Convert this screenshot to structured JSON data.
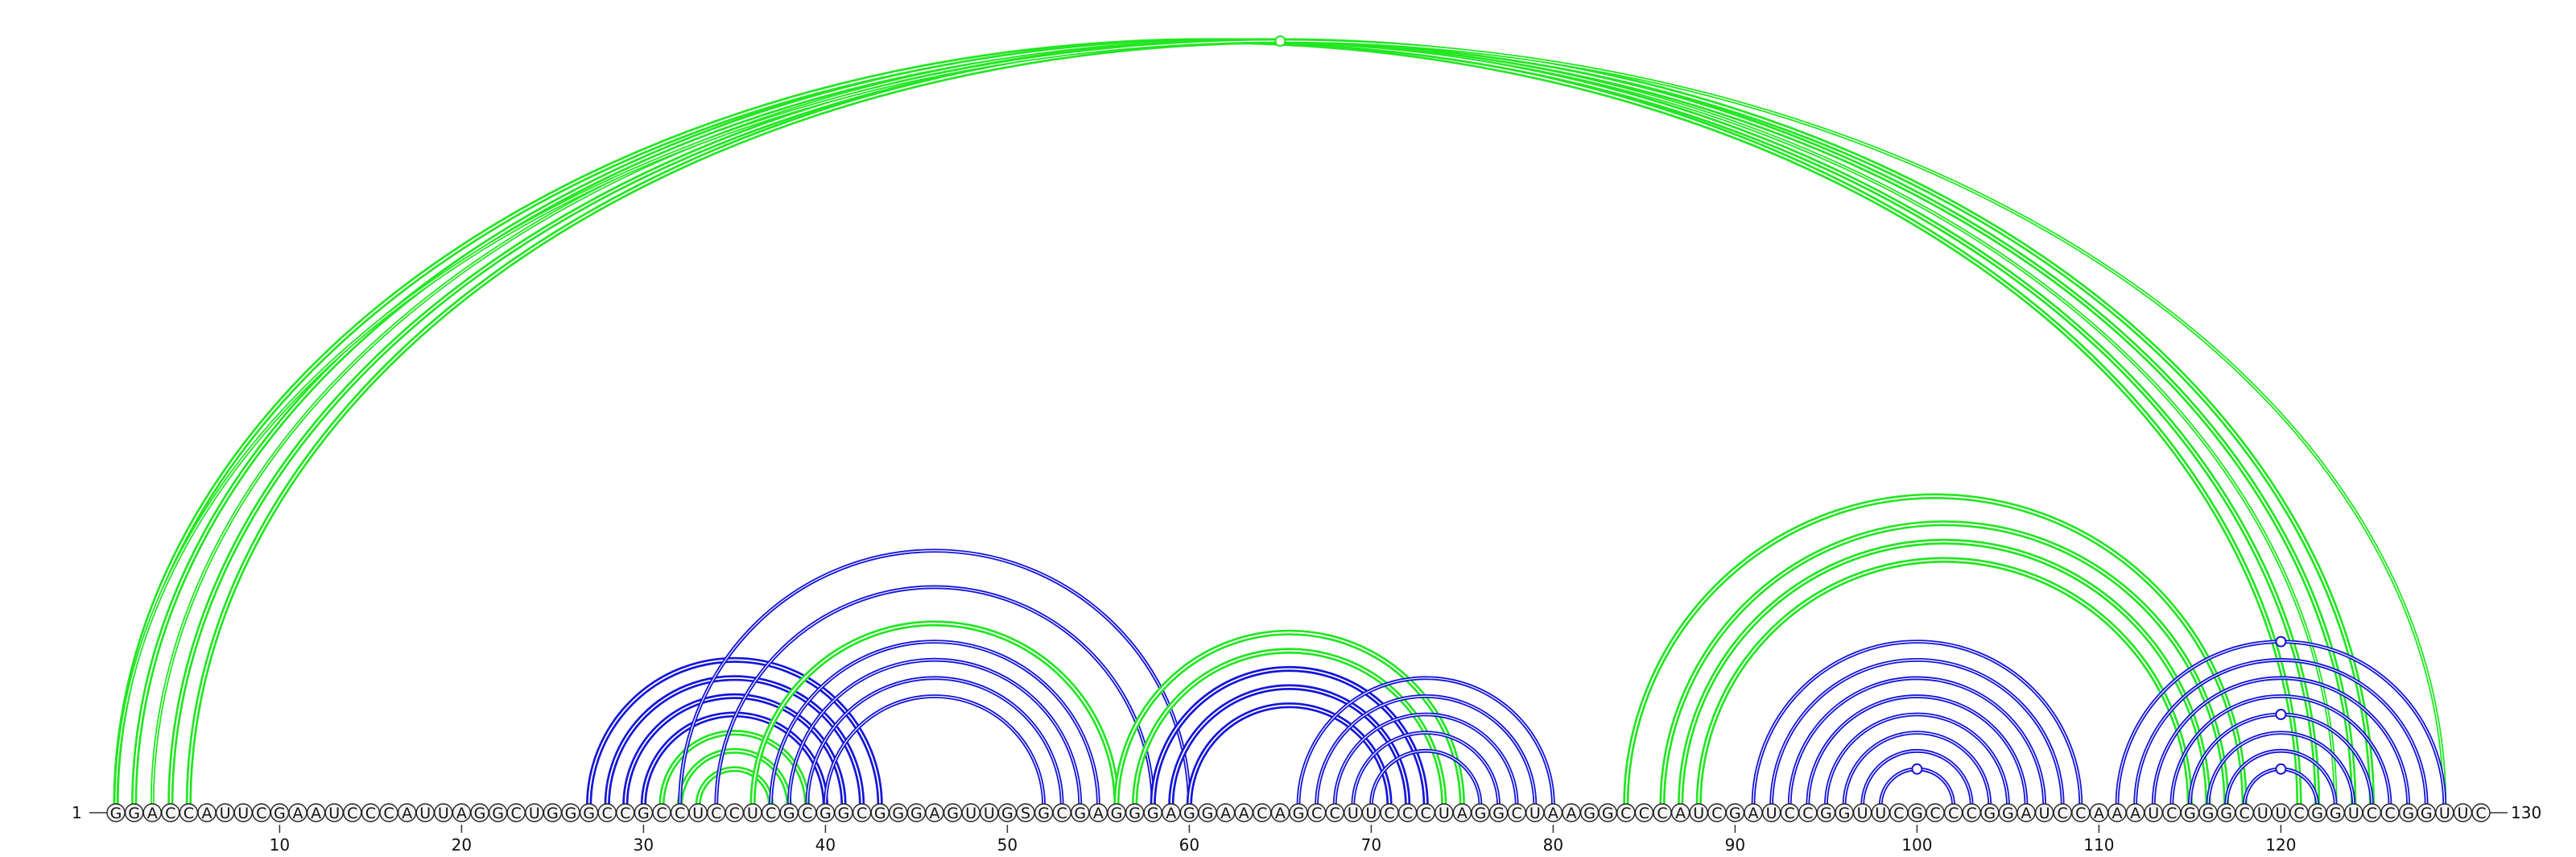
{
  "sequence": "GGACCAUUCGAAUCCCAUUAGGCUGGGCCGCCUCCUCGCGGCGGGAGUUGSGCGAGGGAGGAACAGCCUUCCCUAGGCUAAGGCCCAUCGAUCCGGUUCGCCCGGAUCCAAAUCGGGCUUCGGUCCGGUUC",
  "start_label": "1",
  "end_label": "130",
  "ticks": [
    {
      "pos": 10,
      "label": "10"
    },
    {
      "pos": 20,
      "label": "20"
    },
    {
      "pos": 30,
      "label": "30"
    },
    {
      "pos": 40,
      "label": "40"
    },
    {
      "pos": 50,
      "label": "50"
    },
    {
      "pos": 60,
      "label": "60"
    },
    {
      "pos": 70,
      "label": "70"
    },
    {
      "pos": 80,
      "label": "80"
    },
    {
      "pos": 90,
      "label": "90"
    },
    {
      "pos": 100,
      "label": "100"
    },
    {
      "pos": 110,
      "label": "110"
    },
    {
      "pos": 120,
      "label": "120"
    }
  ],
  "colors": {
    "blue": "#1515d8",
    "green": "#22e622"
  },
  "arcs": [
    {
      "i": 1,
      "j": 121,
      "color": "green",
      "weight": 3
    },
    {
      "i": 2,
      "j": 122,
      "color": "green",
      "weight": 3
    },
    {
      "i": 3,
      "j": 123,
      "color": "green",
      "weight": 2
    },
    {
      "i": 4,
      "j": 124,
      "color": "green",
      "weight": 3
    },
    {
      "i": 5,
      "j": 125,
      "color": "green",
      "weight": 3
    },
    {
      "i": 1,
      "j": 129,
      "color": "green",
      "weight": 2
    },
    {
      "i": 27,
      "j": 43,
      "color": "blue",
      "weight": 3
    },
    {
      "i": 28,
      "j": 42,
      "color": "blue",
      "weight": 3
    },
    {
      "i": 29,
      "j": 41,
      "color": "blue",
      "weight": 3
    },
    {
      "i": 30,
      "j": 40,
      "color": "blue",
      "weight": 3
    },
    {
      "i": 31,
      "j": 39,
      "color": "green",
      "weight": 3
    },
    {
      "i": 32,
      "j": 38,
      "color": "green",
      "weight": 3
    },
    {
      "i": 33,
      "j": 37,
      "color": "green",
      "weight": 3
    },
    {
      "i": 32,
      "j": 60,
      "color": "blue",
      "weight": 2
    },
    {
      "i": 34,
      "j": 58,
      "color": "blue",
      "weight": 2
    },
    {
      "i": 36,
      "j": 56,
      "color": "green",
      "weight": 3
    },
    {
      "i": 37,
      "j": 55,
      "color": "blue",
      "weight": 2
    },
    {
      "i": 38,
      "j": 54,
      "color": "blue",
      "weight": 2
    },
    {
      "i": 39,
      "j": 53,
      "color": "blue",
      "weight": 2
    },
    {
      "i": 40,
      "j": 52,
      "color": "blue",
      "weight": 2
    },
    {
      "i": 56,
      "j": 75,
      "color": "green",
      "weight": 3
    },
    {
      "i": 57,
      "j": 74,
      "color": "green",
      "weight": 3
    },
    {
      "i": 58,
      "j": 73,
      "color": "blue",
      "weight": 3
    },
    {
      "i": 59,
      "j": 72,
      "color": "blue",
      "weight": 3
    },
    {
      "i": 60,
      "j": 71,
      "color": "blue",
      "weight": 3
    },
    {
      "i": 66,
      "j": 80,
      "color": "blue",
      "weight": 2
    },
    {
      "i": 67,
      "j": 79,
      "color": "blue",
      "weight": 2
    },
    {
      "i": 68,
      "j": 78,
      "color": "blue",
      "weight": 2
    },
    {
      "i": 69,
      "j": 77,
      "color": "blue",
      "weight": 2
    },
    {
      "i": 70,
      "j": 76,
      "color": "blue",
      "weight": 2
    },
    {
      "i": 84,
      "j": 118,
      "color": "green",
      "weight": 3
    },
    {
      "i": 86,
      "j": 117,
      "color": "green",
      "weight": 3
    },
    {
      "i": 87,
      "j": 116,
      "color": "green",
      "weight": 3
    },
    {
      "i": 88,
      "j": 115,
      "color": "green",
      "weight": 3
    },
    {
      "i": 91,
      "j": 109,
      "color": "blue",
      "weight": 2
    },
    {
      "i": 92,
      "j": 108,
      "color": "blue",
      "weight": 2
    },
    {
      "i": 93,
      "j": 107,
      "color": "blue",
      "weight": 2
    },
    {
      "i": 94,
      "j": 106,
      "color": "blue",
      "weight": 2
    },
    {
      "i": 95,
      "j": 105,
      "color": "blue",
      "weight": 2
    },
    {
      "i": 96,
      "j": 104,
      "color": "blue",
      "weight": 2
    },
    {
      "i": 97,
      "j": 103,
      "color": "blue",
      "weight": 2
    },
    {
      "i": 98,
      "j": 102,
      "color": "blue",
      "weight": 2
    },
    {
      "i": 111,
      "j": 129,
      "color": "blue",
      "weight": 2
    },
    {
      "i": 112,
      "j": 128,
      "color": "blue",
      "weight": 2
    },
    {
      "i": 113,
      "j": 127,
      "color": "blue",
      "weight": 2
    },
    {
      "i": 114,
      "j": 126,
      "color": "blue",
      "weight": 2
    },
    {
      "i": 115,
      "j": 125,
      "color": "blue",
      "weight": 2
    },
    {
      "i": 116,
      "j": 124,
      "color": "blue",
      "weight": 2
    },
    {
      "i": 117,
      "j": 123,
      "color": "blue",
      "weight": 2
    },
    {
      "i": 118,
      "j": 122,
      "color": "blue",
      "weight": 2
    }
  ],
  "apex_markers": [
    {
      "i": 1,
      "j": 129,
      "color": "green"
    },
    {
      "i": 98,
      "j": 102,
      "color": "blue"
    },
    {
      "i": 111,
      "j": 129,
      "color": "blue"
    },
    {
      "i": 115,
      "j": 125,
      "color": "blue"
    },
    {
      "i": 118,
      "j": 122,
      "color": "blue"
    }
  ]
}
